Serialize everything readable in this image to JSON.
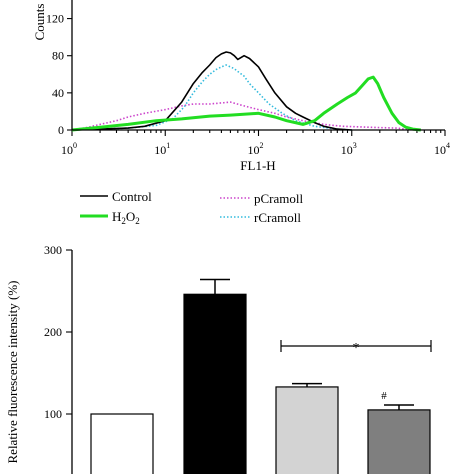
{
  "chart_data": [
    {
      "type": "line",
      "xscale": "log",
      "xlabel": "FL1-H",
      "ylabel": "Counts",
      "xlim": [
        1,
        10000
      ],
      "ylim": [
        0,
        140
      ],
      "x_ticks": [
        {
          "base": "10",
          "exp": "0"
        },
        {
          "base": "10",
          "exp": "1"
        },
        {
          "base": "10",
          "exp": "2"
        },
        {
          "base": "10",
          "exp": "3"
        },
        {
          "base": "10",
          "exp": "4"
        }
      ],
      "y_ticks": [
        "0",
        "40",
        "80",
        "120"
      ],
      "legend_position": "bottom",
      "series": [
        {
          "name": "Control",
          "color": "#000000",
          "style": "solid",
          "points": [
            [
              1,
              0
            ],
            [
              2,
              1
            ],
            [
              4,
              2
            ],
            [
              6,
              4
            ],
            [
              10,
              10
            ],
            [
              15,
              30
            ],
            [
              20,
              50
            ],
            [
              25,
              62
            ],
            [
              30,
              70
            ],
            [
              35,
              78
            ],
            [
              40,
              82
            ],
            [
              45,
              84
            ],
            [
              50,
              83
            ],
            [
              55,
              80
            ],
            [
              60,
              76
            ],
            [
              70,
              80
            ],
            [
              80,
              77
            ],
            [
              100,
              68
            ],
            [
              120,
              55
            ],
            [
              150,
              40
            ],
            [
              200,
              25
            ],
            [
              250,
              18
            ],
            [
              300,
              14
            ],
            [
              400,
              8
            ],
            [
              500,
              4
            ],
            [
              700,
              1
            ],
            [
              1000,
              0
            ]
          ]
        },
        {
          "name": "H2O2",
          "label_parts": [
            "H",
            "2",
            "O",
            "2"
          ],
          "color": "#22dd22",
          "style": "solid",
          "points": [
            [
              1,
              0
            ],
            [
              2,
              3
            ],
            [
              4,
              6
            ],
            [
              8,
              10
            ],
            [
              15,
              12
            ],
            [
              30,
              15
            ],
            [
              50,
              16
            ],
            [
              100,
              18
            ],
            [
              150,
              14
            ],
            [
              200,
              10
            ],
            [
              300,
              6
            ],
            [
              400,
              10
            ],
            [
              500,
              18
            ],
            [
              700,
              28
            ],
            [
              900,
              35
            ],
            [
              1100,
              40
            ],
            [
              1300,
              48
            ],
            [
              1500,
              55
            ],
            [
              1700,
              57
            ],
            [
              1900,
              50
            ],
            [
              2200,
              35
            ],
            [
              2700,
              18
            ],
            [
              3200,
              8
            ],
            [
              3800,
              3
            ],
            [
              4500,
              1
            ],
            [
              5500,
              0
            ]
          ]
        },
        {
          "name": "pCramoll",
          "color": "#cc44cc",
          "style": "dotted",
          "points": [
            [
              1,
              0
            ],
            [
              1.5,
              3
            ],
            [
              2,
              6
            ],
            [
              3,
              10
            ],
            [
              4,
              14
            ],
            [
              6,
              18
            ],
            [
              10,
              22
            ],
            [
              15,
              26
            ],
            [
              20,
              28
            ],
            [
              30,
              28
            ],
            [
              50,
              30
            ],
            [
              70,
              26
            ],
            [
              100,
              22
            ],
            [
              150,
              18
            ],
            [
              200,
              14
            ],
            [
              300,
              10
            ],
            [
              500,
              6
            ],
            [
              800,
              4
            ],
            [
              1500,
              3
            ],
            [
              3000,
              2
            ],
            [
              5000,
              0
            ]
          ]
        },
        {
          "name": "rCramoll",
          "color": "#33bbdd",
          "style": "dotted",
          "points": [
            [
              1,
              0
            ],
            [
              2,
              1
            ],
            [
              4,
              2
            ],
            [
              8,
              5
            ],
            [
              12,
              12
            ],
            [
              16,
              25
            ],
            [
              20,
              40
            ],
            [
              25,
              52
            ],
            [
              30,
              60
            ],
            [
              35,
              65
            ],
            [
              40,
              68
            ],
            [
              45,
              70
            ],
            [
              50,
              68
            ],
            [
              55,
              66
            ],
            [
              60,
              63
            ],
            [
              70,
              58
            ],
            [
              80,
              50
            ],
            [
              100,
              40
            ],
            [
              130,
              28
            ],
            [
              180,
              18
            ],
            [
              250,
              10
            ],
            [
              400,
              4
            ],
            [
              700,
              1
            ],
            [
              1000,
              0
            ]
          ]
        }
      ]
    },
    {
      "type": "bar",
      "ylabel": "Relative fluorescence intensity (%)",
      "ylim": [
        0,
        300
      ],
      "y_ticks": [
        "100",
        "200",
        "300"
      ],
      "values": [
        100,
        246,
        133,
        105
      ],
      "errors": [
        0,
        18,
        4,
        6
      ],
      "fills": [
        "#ffffff",
        "#000000",
        "#d3d3d3",
        "#7f7f7f"
      ],
      "annotations": {
        "bracket_label": "*",
        "bar_label": "#"
      }
    }
  ]
}
